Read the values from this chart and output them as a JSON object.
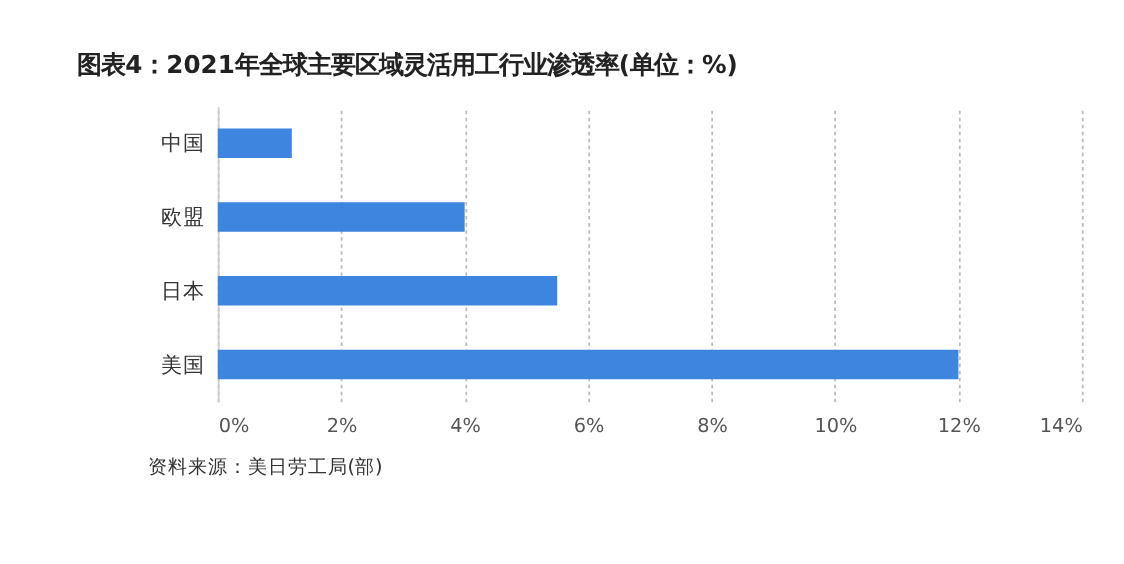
{
  "chart_data": {
    "type": "bar",
    "orientation": "horizontal",
    "title": "图表4：2021年全球主要区域灵活用工行业渗透率(单位：%)",
    "categories": [
      "中国",
      "欧盟",
      "日本",
      "美国"
    ],
    "values": [
      1.2,
      4,
      5.5,
      12
    ],
    "color": "#3e85e0",
    "xlim": [
      0,
      14
    ],
    "xticks": [
      {
        "value": 0,
        "label": "0%"
      },
      {
        "value": 2,
        "label": "2%"
      },
      {
        "value": 4,
        "label": "4%"
      },
      {
        "value": 6,
        "label": "6%"
      },
      {
        "value": 8,
        "label": "8%"
      },
      {
        "value": 10,
        "label": "10%"
      },
      {
        "value": 12,
        "label": "12%"
      },
      {
        "value": 14,
        "label": "14%"
      }
    ],
    "grid": "x",
    "annotations": [
      "资料来源：美日劳工局(部)"
    ]
  }
}
